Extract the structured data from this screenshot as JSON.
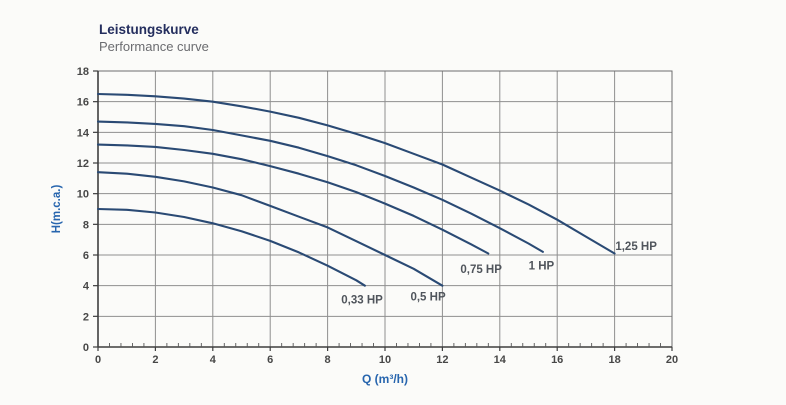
{
  "header": {
    "title_de": "Leistungskurve",
    "title_en": "Performance curve"
  },
  "chart_data": {
    "type": "line",
    "title": "Leistungskurve / Performance curve",
    "xlabel": "Q (m³/h)",
    "ylabel": "H(m.c.a.)",
    "xlim": [
      0,
      20
    ],
    "ylim": [
      0,
      18
    ],
    "x_ticks": [
      0,
      2,
      4,
      6,
      8,
      10,
      12,
      14,
      16,
      18,
      20
    ],
    "y_ticks": [
      0,
      2,
      4,
      6,
      8,
      10,
      12,
      14,
      16,
      18
    ],
    "x_minor_step": 0.4,
    "grid": true,
    "legend_position": "inline-labels",
    "colors": {
      "background": "#fbfbf9",
      "grid": "#8f8f8f",
      "frame": "#6e6e6e",
      "spine": "#3e3e3e",
      "tick_text": "#474747",
      "curve": "#2a4a74",
      "curve_label": "#50555c",
      "axis_title": "#2765ae",
      "title": "#242e5e",
      "subtitle": "#6b6c70"
    },
    "series": [
      {
        "name": "0,33 HP",
        "label_at": [
          9.2,
          3.1
        ],
        "points": [
          [
            0,
            9.0
          ],
          [
            1,
            8.95
          ],
          [
            2,
            8.77
          ],
          [
            3,
            8.48
          ],
          [
            4,
            8.07
          ],
          [
            5,
            7.55
          ],
          [
            6,
            6.92
          ],
          [
            7,
            6.17
          ],
          [
            8,
            5.3
          ],
          [
            9,
            4.35
          ],
          [
            9.3,
            4.0
          ]
        ]
      },
      {
        "name": "0,5 HP",
        "label_at": [
          11.5,
          3.3
        ],
        "points": [
          [
            0,
            11.4
          ],
          [
            1,
            11.3
          ],
          [
            2,
            11.1
          ],
          [
            3,
            10.8
          ],
          [
            4,
            10.4
          ],
          [
            5,
            9.9
          ],
          [
            6,
            9.2
          ],
          [
            7,
            8.5
          ],
          [
            8,
            7.8
          ],
          [
            9,
            6.9
          ],
          [
            10,
            6.0
          ],
          [
            11,
            5.1
          ],
          [
            12,
            4.0
          ]
        ]
      },
      {
        "name": "0,75 HP",
        "label_at": [
          13.35,
          5.1
        ],
        "points": [
          [
            0,
            13.2
          ],
          [
            1,
            13.15
          ],
          [
            2,
            13.05
          ],
          [
            3,
            12.85
          ],
          [
            4,
            12.6
          ],
          [
            5,
            12.25
          ],
          [
            6,
            11.8
          ],
          [
            7,
            11.3
          ],
          [
            8,
            10.75
          ],
          [
            9,
            10.1
          ],
          [
            10,
            9.35
          ],
          [
            11,
            8.55
          ],
          [
            12,
            7.65
          ],
          [
            13,
            6.7
          ],
          [
            13.6,
            6.1
          ]
        ]
      },
      {
        "name": "1 HP",
        "label_at": [
          15.45,
          5.3
        ],
        "points": [
          [
            0,
            14.7
          ],
          [
            1,
            14.65
          ],
          [
            2,
            14.55
          ],
          [
            3,
            14.4
          ],
          [
            4,
            14.15
          ],
          [
            5,
            13.8
          ],
          [
            6,
            13.45
          ],
          [
            7,
            13.0
          ],
          [
            8,
            12.45
          ],
          [
            9,
            11.85
          ],
          [
            10,
            11.15
          ],
          [
            11,
            10.4
          ],
          [
            12,
            9.6
          ],
          [
            13,
            8.7
          ],
          [
            14,
            7.75
          ],
          [
            15,
            6.75
          ],
          [
            15.5,
            6.2
          ]
        ]
      },
      {
        "name": "1,25 HP",
        "label_at": [
          18.75,
          6.6
        ],
        "points": [
          [
            0,
            16.5
          ],
          [
            1,
            16.45
          ],
          [
            2,
            16.35
          ],
          [
            3,
            16.2
          ],
          [
            4,
            16.0
          ],
          [
            5,
            15.7
          ],
          [
            6,
            15.35
          ],
          [
            7,
            14.95
          ],
          [
            8,
            14.45
          ],
          [
            9,
            13.9
          ],
          [
            10,
            13.3
          ],
          [
            11,
            12.6
          ],
          [
            12,
            11.9
          ],
          [
            13,
            11.05
          ],
          [
            14,
            10.2
          ],
          [
            15,
            9.3
          ],
          [
            16,
            8.3
          ],
          [
            17,
            7.2
          ],
          [
            18,
            6.1
          ]
        ]
      }
    ]
  }
}
